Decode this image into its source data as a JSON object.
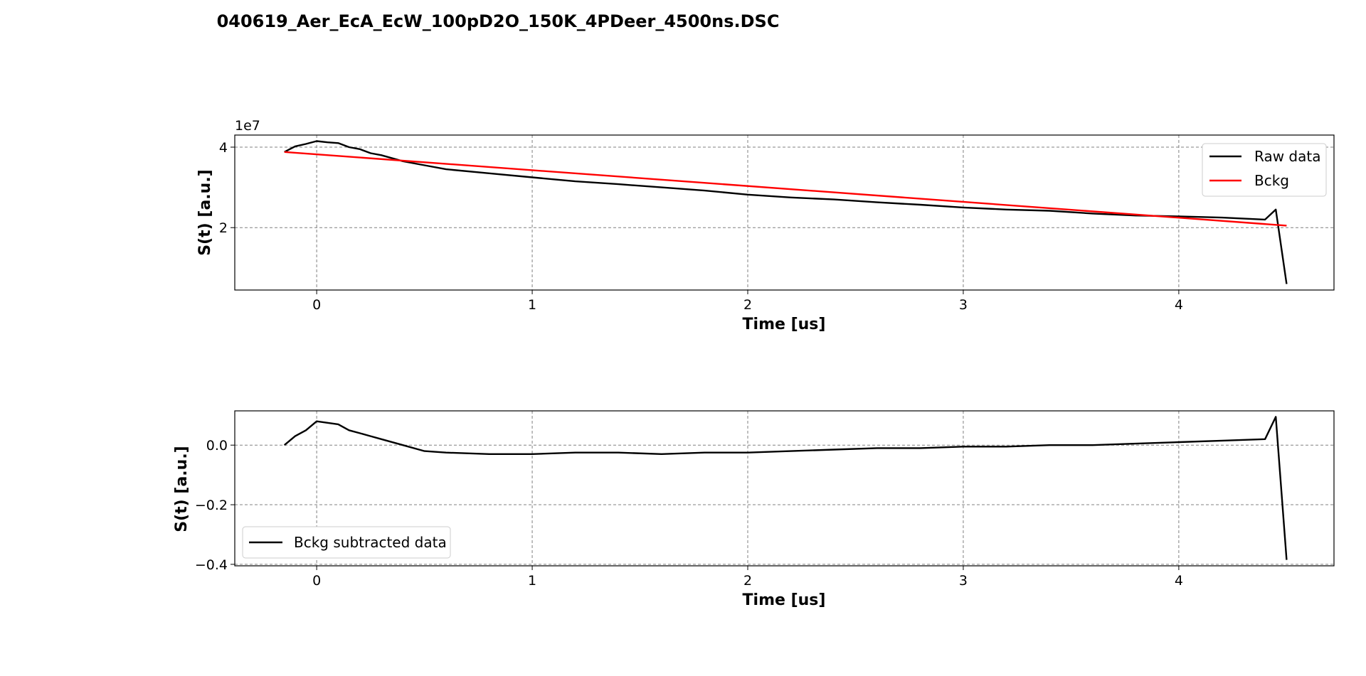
{
  "figure_title": "040619_Aer_EcA_EcW_100pD2O_150K_4PDeer_4500ns.DSC",
  "chart_data": [
    {
      "type": "line",
      "xlabel": "Time [us]",
      "ylabel": "S(t) [a.u.]",
      "offset_text": "1e7",
      "xlim": [
        -0.38,
        4.72
      ],
      "ylim": [
        0.45,
        4.3
      ],
      "xticks": [
        0,
        1,
        2,
        3,
        4
      ],
      "xtick_labels": [
        "0",
        "1",
        "2",
        "3",
        "4"
      ],
      "yticks": [
        2,
        4
      ],
      "ytick_labels": [
        "2",
        "4"
      ],
      "grid": true,
      "legend_position": "upper right",
      "series": [
        {
          "name": "Raw data",
          "color": "#000000",
          "x": [
            -0.15,
            -0.1,
            -0.05,
            0.0,
            0.05,
            0.1,
            0.15,
            0.2,
            0.25,
            0.3,
            0.4,
            0.5,
            0.6,
            0.8,
            1.0,
            1.2,
            1.4,
            1.6,
            1.8,
            2.0,
            2.2,
            2.4,
            2.6,
            2.8,
            3.0,
            3.2,
            3.4,
            3.6,
            3.8,
            4.0,
            4.2,
            4.4,
            4.45,
            4.5
          ],
          "y": [
            3.88,
            4.02,
            4.08,
            4.15,
            4.12,
            4.1,
            4.0,
            3.95,
            3.85,
            3.8,
            3.65,
            3.55,
            3.45,
            3.35,
            3.25,
            3.15,
            3.08,
            3.0,
            2.92,
            2.82,
            2.75,
            2.7,
            2.63,
            2.57,
            2.5,
            2.45,
            2.42,
            2.35,
            2.3,
            2.28,
            2.25,
            2.2,
            2.45,
            0.6
          ]
        },
        {
          "name": "Bckg",
          "color": "#ff0000",
          "x": [
            -0.15,
            4.5
          ],
          "y": [
            3.88,
            2.05
          ]
        }
      ]
    },
    {
      "type": "line",
      "xlabel": "Time [us]",
      "ylabel": "S(t) [a.u.]",
      "xlim": [
        -0.38,
        4.72
      ],
      "ylim": [
        -0.405,
        0.115
      ],
      "xticks": [
        0,
        1,
        2,
        3,
        4
      ],
      "xtick_labels": [
        "0",
        "1",
        "2",
        "3",
        "4"
      ],
      "yticks": [
        0.0,
        -0.2,
        -0.4
      ],
      "ytick_labels": [
        "0.0",
        "−0.2",
        "−0.4"
      ],
      "grid": true,
      "legend_position": "lower left",
      "series": [
        {
          "name": "Bckg subtracted data",
          "color": "#000000",
          "x": [
            -0.15,
            -0.1,
            -0.05,
            0.0,
            0.05,
            0.1,
            0.15,
            0.2,
            0.25,
            0.3,
            0.4,
            0.5,
            0.6,
            0.8,
            1.0,
            1.2,
            1.4,
            1.6,
            1.8,
            2.0,
            2.2,
            2.4,
            2.6,
            2.8,
            3.0,
            3.2,
            3.4,
            3.6,
            3.8,
            4.0,
            4.2,
            4.4,
            4.45,
            4.5
          ],
          "y": [
            0.0,
            0.03,
            0.05,
            0.08,
            0.075,
            0.07,
            0.05,
            0.04,
            0.03,
            0.02,
            0.0,
            -0.02,
            -0.025,
            -0.03,
            -0.03,
            -0.025,
            -0.025,
            -0.03,
            -0.025,
            -0.025,
            -0.02,
            -0.015,
            -0.01,
            -0.01,
            -0.005,
            -0.005,
            0.0,
            0.0,
            0.005,
            0.01,
            0.015,
            0.02,
            0.095,
            -0.385
          ]
        }
      ]
    }
  ]
}
